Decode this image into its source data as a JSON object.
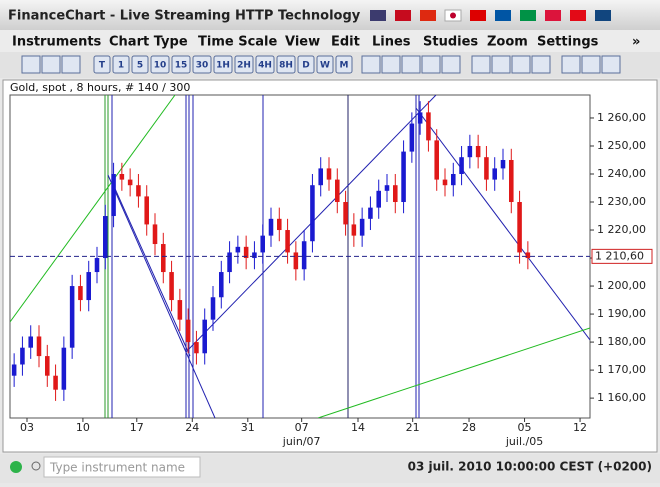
{
  "window": {
    "title": "FinanceChart - Live Streaming HTTP Technology"
  },
  "menu": [
    "Instruments",
    "Chart Type",
    "Time Scale",
    "View",
    "Edit",
    "Lines",
    "Studies",
    "Zoom",
    "Settings",
    "»"
  ],
  "toolbar": [
    "T",
    "1",
    "5",
    "10",
    "15",
    "30",
    "1H",
    "2H",
    "4H",
    "8H",
    "D",
    "W",
    "M"
  ],
  "status": {
    "search_placeholder": "Type instrument name",
    "datetime": "03 juil. 2010 10:00:00 CEST (+0200)"
  },
  "chart_data": {
    "type": "candlestick",
    "title": "Gold, spot , 8 hours, # 140 / 300",
    "up_color": "#1a1ad0",
    "down_color": "#e01818",
    "open": [
      1168,
      1172,
      1178,
      1182,
      1175,
      1168,
      1163,
      1178,
      1200,
      1195,
      1205,
      1210,
      1225,
      1240,
      1238,
      1236,
      1232,
      1222,
      1215,
      1205,
      1195,
      1188,
      1180,
      1176,
      1188,
      1196,
      1205,
      1212,
      1214,
      1210,
      1212,
      1218,
      1224,
      1220,
      1212,
      1206,
      1216,
      1236,
      1242,
      1238,
      1230,
      1222,
      1218,
      1224,
      1228,
      1234,
      1236,
      1230,
      1248,
      1258,
      1262,
      1252,
      1238,
      1236,
      1240,
      1246,
      1250,
      1246,
      1238,
      1242,
      1245,
      1230,
      1212
    ],
    "high": [
      1176,
      1182,
      1186,
      1186,
      1179,
      1172,
      1182,
      1204,
      1204,
      1209,
      1214,
      1229,
      1244,
      1244,
      1242,
      1240,
      1236,
      1226,
      1219,
      1209,
      1199,
      1192,
      1184,
      1192,
      1200,
      1209,
      1216,
      1218,
      1218,
      1216,
      1222,
      1228,
      1228,
      1224,
      1216,
      1220,
      1240,
      1246,
      1246,
      1242,
      1234,
      1226,
      1228,
      1232,
      1238,
      1240,
      1240,
      1252,
      1262,
      1266,
      1266,
      1256,
      1242,
      1244,
      1250,
      1254,
      1254,
      1250,
      1246,
      1249,
      1249,
      1234,
      1216
    ],
    "low": [
      1164,
      1168,
      1174,
      1171,
      1164,
      1159,
      1159,
      1174,
      1191,
      1191,
      1201,
      1206,
      1221,
      1234,
      1232,
      1228,
      1218,
      1211,
      1201,
      1191,
      1184,
      1176,
      1172,
      1172,
      1184,
      1192,
      1201,
      1208,
      1206,
      1206,
      1208,
      1214,
      1216,
      1208,
      1202,
      1202,
      1212,
      1232,
      1234,
      1226,
      1218,
      1214,
      1214,
      1220,
      1224,
      1230,
      1226,
      1226,
      1244,
      1254,
      1248,
      1234,
      1232,
      1232,
      1236,
      1242,
      1242,
      1234,
      1234,
      1238,
      1226,
      1208,
      1206
    ],
    "close": [
      1172,
      1178,
      1182,
      1175,
      1168,
      1163,
      1178,
      1200,
      1195,
      1205,
      1210,
      1225,
      1240,
      1238,
      1236,
      1232,
      1222,
      1215,
      1205,
      1195,
      1188,
      1180,
      1176,
      1188,
      1196,
      1205,
      1212,
      1214,
      1210,
      1212,
      1218,
      1224,
      1220,
      1212,
      1206,
      1216,
      1236,
      1242,
      1238,
      1230,
      1222,
      1218,
      1224,
      1228,
      1234,
      1236,
      1230,
      1248,
      1258,
      1262,
      1252,
      1238,
      1236,
      1240,
      1246,
      1250,
      1246,
      1238,
      1242,
      1245,
      1230,
      1212,
      1210
    ],
    "xlim": [
      0,
      70
    ],
    "xticks": [
      {
        "value": 2.05,
        "label": "03"
      },
      {
        "value": 8.8,
        "label": "10"
      },
      {
        "value": 15.3,
        "label": "17"
      },
      {
        "value": 22.0,
        "label": "24"
      },
      {
        "value": 28.7,
        "label": "31"
      },
      {
        "value": 35.2,
        "label": "07"
      },
      {
        "value": 42.0,
        "label": "14"
      },
      {
        "value": 48.6,
        "label": "21"
      },
      {
        "value": 55.4,
        "label": "28"
      },
      {
        "value": 62.1,
        "label": "05"
      },
      {
        "value": 68.8,
        "label": "12"
      }
    ],
    "xticks_secondary": [
      {
        "value": 35.2,
        "label": "juin/07"
      },
      {
        "value": 62.1,
        "label": "juil./05"
      }
    ],
    "ylim": [
      1152.9,
      1268.2
    ],
    "yticks": [
      {
        "value": 1160,
        "label": "1 160,00"
      },
      {
        "value": 1170,
        "label": "1 170,00"
      },
      {
        "value": 1180,
        "label": "1 180,00"
      },
      {
        "value": 1190,
        "label": "1 190,00"
      },
      {
        "value": 1200,
        "label": "1 200,00"
      },
      {
        "value": 1210,
        "label": "1 210,00"
      },
      {
        "value": 1220,
        "label": "1 220,00"
      },
      {
        "value": 1230,
        "label": "1 230,00"
      },
      {
        "value": 1240,
        "label": "1 240,00"
      },
      {
        "value": 1250,
        "label": "1 250,00"
      },
      {
        "value": 1260,
        "label": "1 260,00"
      }
    ],
    "price_line": {
      "value": 1210.6,
      "label": "1 210,60"
    }
  }
}
